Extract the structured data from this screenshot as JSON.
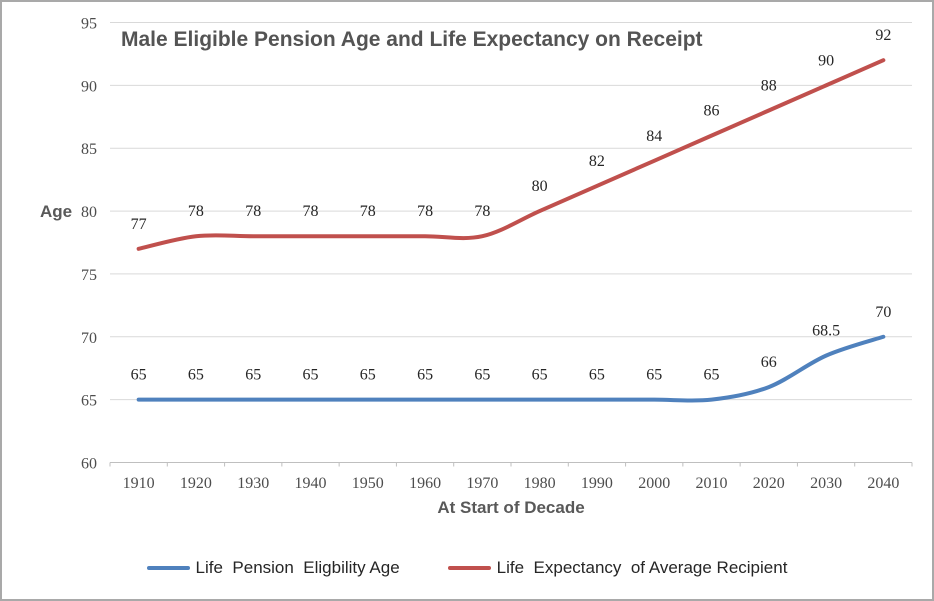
{
  "window": {
    "background": "#ffffff",
    "border_color": "#a9a9a9"
  },
  "chart_data": {
    "type": "line",
    "title": "Male Eligible Pension Age and Life Expectancy on Receipt",
    "xlabel": "At Start of Decade",
    "ylabel": "Age",
    "categories": [
      "1910",
      "1920",
      "1930",
      "1940",
      "1950",
      "1960",
      "1970",
      "1980",
      "1990",
      "2000",
      "2010",
      "2020",
      "2030",
      "2040"
    ],
    "series": [
      {
        "name": "Life  Pension  Eligbility Age",
        "color": "#4F81BD",
        "values": [
          65,
          65,
          65,
          65,
          65,
          65,
          65,
          65,
          65,
          65,
          65,
          66,
          68.5,
          70
        ],
        "labels": [
          "65",
          "65",
          "65",
          "65",
          "65",
          "65",
          "65",
          "65",
          "65",
          "65",
          "65",
          "66",
          "68.5",
          "70"
        ]
      },
      {
        "name": "Life  Expectancy  of Average Recipient",
        "color": "#C0504D",
        "values": [
          77,
          78,
          78,
          78,
          78,
          78,
          78,
          80,
          82,
          84,
          86,
          88,
          90,
          92
        ],
        "labels": [
          "77",
          "78",
          "78",
          "78",
          "78",
          "78",
          "78",
          "80",
          "82",
          "84",
          "86",
          "88",
          "90",
          "92"
        ]
      }
    ],
    "ylim": [
      60,
      95
    ],
    "yticks": [
      60,
      65,
      70,
      75,
      80,
      85,
      90,
      95
    ],
    "grid": true,
    "legend_position": "bottom",
    "styles": {
      "gridline_color": "#d9d9d9",
      "axis_color": "#bfbfbf",
      "tick_label_color": "#4d4d4d",
      "data_label_color": "#262626",
      "title_color": "#545454",
      "axis_title_color": "#595959",
      "legend_text_color": "#262626"
    }
  }
}
